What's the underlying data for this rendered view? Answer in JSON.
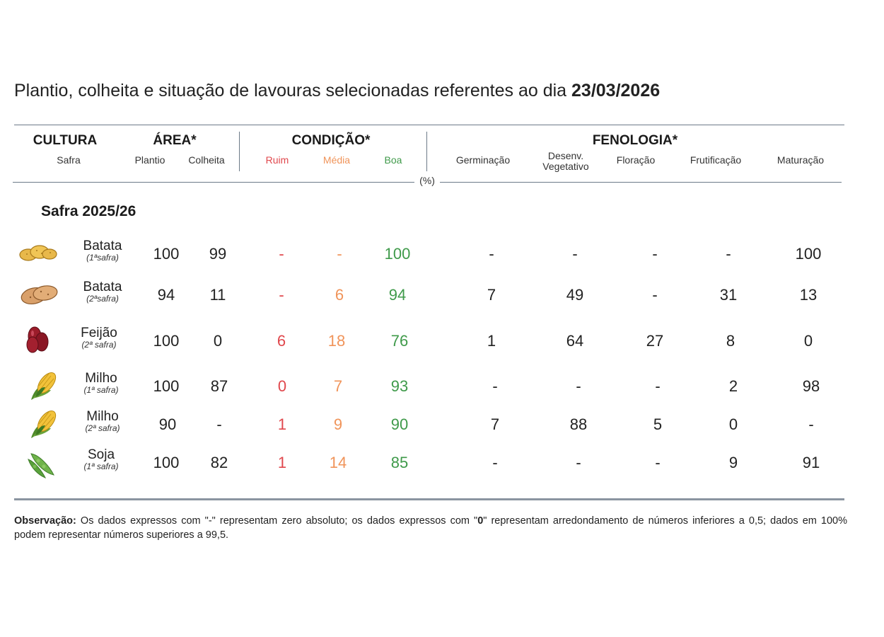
{
  "title": {
    "prefix": "Plantio, colheita e situação de lavouras selecionadas referentes ao dia ",
    "date": "23/03/2026"
  },
  "headers": {
    "cultura": "CULTURA",
    "safra": "Safra",
    "area": "ÁREA*",
    "plantio": "Plantio",
    "colheita": "Colheita",
    "condicao": "CONDIÇÃO*",
    "ruim": "Ruim",
    "media": "Média",
    "boa": "Boa",
    "fenologia": "FENOLOGIA*",
    "germinacao": "Germinação",
    "desenv_line1": "Desenv.",
    "desenv_line2": "Vegetativo",
    "floracao": "Floração",
    "frutificacao": "Frutificação",
    "maturacao": "Maturação",
    "unit": "(%)"
  },
  "section_title": "Safra 2025/26",
  "rows": [
    {
      "crop": "Batata",
      "season": "(1ªsafra)",
      "icon": "potato-icon",
      "plantio": "100",
      "colheita": "99",
      "ruim": "-",
      "media": "-",
      "boa": "100",
      "germinacao": "-",
      "desenv": "-",
      "floracao": "-",
      "frutificacao": "-",
      "maturacao": "100"
    },
    {
      "crop": "Batata",
      "season": "(2ªsafra)",
      "icon": "potato-icon",
      "plantio": "94",
      "colheita": "11",
      "ruim": "-",
      "media": "6",
      "boa": "94",
      "germinacao": "7",
      "desenv": "49",
      "floracao": "-",
      "frutificacao": "31",
      "maturacao": "13"
    },
    {
      "crop": "Feijão",
      "season": "(2ª safra)",
      "icon": "bean-icon",
      "plantio": "100",
      "colheita": "0",
      "ruim": "6",
      "media": "18",
      "boa": "76",
      "germinacao": "1",
      "desenv": "64",
      "floracao": "27",
      "frutificacao": "8",
      "maturacao": "0"
    },
    {
      "crop": "Milho",
      "season": "(1ª safra)",
      "icon": "corn-icon",
      "plantio": "100",
      "colheita": "87",
      "ruim": "0",
      "media": "7",
      "boa": "93",
      "germinacao": "-",
      "desenv": "-",
      "floracao": "-",
      "frutificacao": "2",
      "maturacao": "98"
    },
    {
      "crop": "Milho",
      "season": "(2ª safra)",
      "icon": "corn-icon",
      "plantio": "90",
      "colheita": "-",
      "ruim": "1",
      "media": "9",
      "boa": "90",
      "germinacao": "7",
      "desenv": "88",
      "floracao": "5",
      "frutificacao": "0",
      "maturacao": "-"
    },
    {
      "crop": "Soja",
      "season": "(1ª safra)",
      "icon": "soy-icon",
      "plantio": "100",
      "colheita": "82",
      "ruim": "1",
      "media": "14",
      "boa": "85",
      "germinacao": "-",
      "desenv": "-",
      "floracao": "-",
      "frutificacao": "9",
      "maturacao": "91"
    }
  ],
  "note": {
    "label": "Observação:",
    "text1": " Os dados expressos com \"-\" representam zero absoluto; os dados expressos com \"",
    "zero": "0",
    "text2": "\" representam arredondamento de números inferiores a 0,5; dados em 100% podem representar números superiores a 99,5."
  },
  "colors": {
    "ruim": "#e0474c",
    "media": "#f0945a",
    "boa": "#3f9a4a",
    "rule": "#6c7a88"
  }
}
